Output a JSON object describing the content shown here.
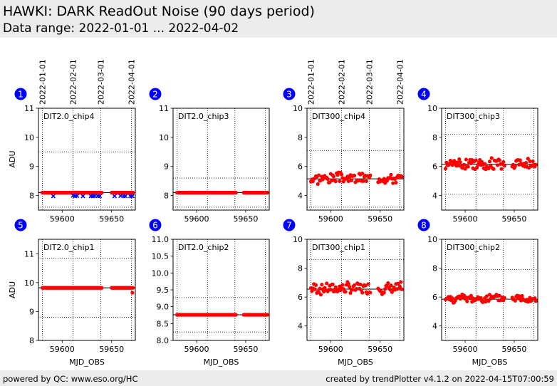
{
  "header": {
    "title": "HAWKI: DARK ReadOut Noise (90 days period)",
    "subtitle": "Data range: 2022-01-01 ... 2022-04-02"
  },
  "footer": {
    "left": "powered by QC: www.eso.org/HC",
    "right": "created by trendPlotter v4.1.2 on 2022-04-15T07:00:59"
  },
  "colors": {
    "header_bg": "#ececec",
    "marker_red": "#ff0000",
    "marker_blue": "#0000ff",
    "badge_blue": "#0000ff"
  },
  "date_axis": {
    "labels": [
      "2022-01-01",
      "2022-02-01",
      "2022-03-01",
      "2022-04-01"
    ],
    "mjd": [
      59580,
      59611,
      59639,
      59670
    ]
  },
  "chart_data": [
    {
      "type": "scatter",
      "badge": "1",
      "label": "DIT2.0_chip4",
      "xlabel": "",
      "ylabel": "ADU",
      "xlim": [
        59576,
        59674
      ],
      "ylim": [
        7.5,
        11
      ],
      "xticks": [
        59600,
        59650
      ],
      "yticks": [
        8,
        9,
        10,
        11
      ],
      "hlines": {
        "solid": 8.1,
        "dotted": [
          9.5,
          7.6
        ]
      },
      "series": [
        {
          "color": "red",
          "marker": "circle",
          "x_ranges": [
            [
              59580,
              59640
            ],
            [
              59650,
              59672
            ]
          ],
          "y": 8.1,
          "step": 0.6
        },
        {
          "color": "blue",
          "marker": "x",
          "x": [
            59591,
            59611,
            59613,
            59615,
            59621,
            59629,
            59631,
            59633,
            59636,
            59638,
            59653,
            59659,
            59662,
            59664,
            59669,
            59671
          ],
          "y": [
            7.98,
            8.0,
            7.98,
            7.99,
            7.98,
            7.98,
            7.98,
            7.99,
            7.98,
            7.98,
            7.98,
            7.99,
            7.98,
            7.98,
            7.98,
            7.98
          ]
        }
      ]
    },
    {
      "type": "scatter",
      "badge": "2",
      "label": "DIT2.0_chip3",
      "xlabel": "",
      "ylabel": "",
      "xlim": [
        59576,
        59674
      ],
      "ylim": [
        7.5,
        11
      ],
      "xticks": [
        59600,
        59650
      ],
      "yticks": [
        8,
        9,
        10,
        11
      ],
      "hlines": {
        "solid": 8.1,
        "dotted": [
          8.6,
          7.6
        ]
      },
      "series": [
        {
          "color": "red",
          "marker": "circle",
          "x_ranges": [
            [
              59580,
              59640
            ],
            [
              59648,
              59672
            ]
          ],
          "y": 8.1,
          "step": 0.6
        }
      ]
    },
    {
      "type": "scatter",
      "badge": "3",
      "label": "DIT300_chip4",
      "xlabel": "",
      "ylabel": "",
      "xlim": [
        59576,
        59674
      ],
      "ylim": [
        3,
        10
      ],
      "xticks": [
        59600,
        59650
      ],
      "yticks": [
        4,
        6,
        8,
        10
      ],
      "hlines": {
        "solid": 5.15,
        "dotted": [
          7.1,
          3.2
        ]
      },
      "series": [
        {
          "color": "red",
          "marker": "circle",
          "x_ranges": [
            [
              59580,
              59640
            ],
            [
              59648,
              59672
            ]
          ],
          "y": 5.2,
          "spread": 0.45,
          "step": 1.0,
          "seed": 3
        }
      ]
    },
    {
      "type": "scatter",
      "badge": "4",
      "label": "DIT300_chip3",
      "xlabel": "",
      "ylabel": "",
      "xlim": [
        59576,
        59674
      ],
      "ylim": [
        3,
        10
      ],
      "xticks": [
        59600,
        59650
      ],
      "yticks": [
        4,
        6,
        8,
        10
      ],
      "hlines": {
        "solid": 6.15,
        "dotted": [
          8.2,
          4.1
        ]
      },
      "series": [
        {
          "color": "red",
          "marker": "circle",
          "x_ranges": [
            [
              59580,
              59640
            ],
            [
              59648,
              59672
            ]
          ],
          "y": 6.2,
          "spread": 0.45,
          "step": 1.0,
          "seed": 4
        }
      ]
    },
    {
      "type": "scatter",
      "badge": "5",
      "label": "DIT2.0_chip1",
      "xlabel": "MJD_OBS",
      "ylabel": "ADU",
      "xlim": [
        59576,
        59674
      ],
      "ylim": [
        8,
        11.5
      ],
      "xticks": [
        59600,
        59650
      ],
      "yticks": [
        8,
        9,
        10,
        11
      ],
      "hlines": {
        "solid": 9.82,
        "dotted": [
          10.85,
          8.8
        ]
      },
      "series": [
        {
          "color": "red",
          "marker": "circle",
          "x_ranges": [
            [
              59580,
              59640
            ],
            [
              59650,
              59672
            ]
          ],
          "y": 9.82,
          "step": 0.6
        },
        {
          "color": "red",
          "marker": "circle",
          "x": [
            59671
          ],
          "y": [
            9.65
          ]
        }
      ]
    },
    {
      "type": "scatter",
      "badge": "6",
      "label": "DIT2.0_chip2",
      "xlabel": "MJD_OBS",
      "ylabel": "",
      "xlim": [
        59576,
        59674
      ],
      "ylim": [
        8,
        11
      ],
      "xticks": [
        59600,
        59650
      ],
      "yticks": [
        8.0,
        8.5,
        9.0,
        9.5,
        10.0,
        10.5,
        11.0
      ],
      "hlines": {
        "solid": 8.76,
        "dotted": [
          9.27,
          8.25
        ]
      },
      "series": [
        {
          "color": "red",
          "marker": "circle",
          "x_ranges": [
            [
              59580,
              59640
            ],
            [
              59648,
              59672
            ]
          ],
          "y": 8.76,
          "step": 0.6
        }
      ]
    },
    {
      "type": "scatter",
      "badge": "7",
      "label": "DIT300_chip1",
      "xlabel": "MJD_OBS",
      "ylabel": "",
      "xlim": [
        59576,
        59674
      ],
      "ylim": [
        3,
        10
      ],
      "xticks": [
        59600,
        59650
      ],
      "yticks": [
        4,
        6,
        8,
        10
      ],
      "hlines": {
        "solid": 6.55,
        "dotted": [
          8.6,
          4.6
        ]
      },
      "series": [
        {
          "color": "red",
          "marker": "circle",
          "x_ranges": [
            [
              59580,
              59640
            ],
            [
              59648,
              59672
            ]
          ],
          "y": 6.6,
          "spread": 0.5,
          "step": 1.0,
          "seed": 7
        }
      ]
    },
    {
      "type": "scatter",
      "badge": "8",
      "label": "DIT300_chip2",
      "xlabel": "MJD_OBS",
      "ylabel": "",
      "xlim": [
        59576,
        59674
      ],
      "ylim": [
        3,
        10
      ],
      "xticks": [
        59600,
        59650
      ],
      "yticks": [
        4,
        6,
        8,
        10
      ],
      "hlines": {
        "solid": 5.85,
        "dotted": [
          7.9,
          3.9
        ]
      },
      "series": [
        {
          "color": "red",
          "marker": "circle",
          "x_ranges": [
            [
              59580,
              59640
            ],
            [
              59648,
              59672
            ]
          ],
          "y": 5.9,
          "spread": 0.35,
          "step": 1.0,
          "seed": 8
        }
      ]
    }
  ]
}
